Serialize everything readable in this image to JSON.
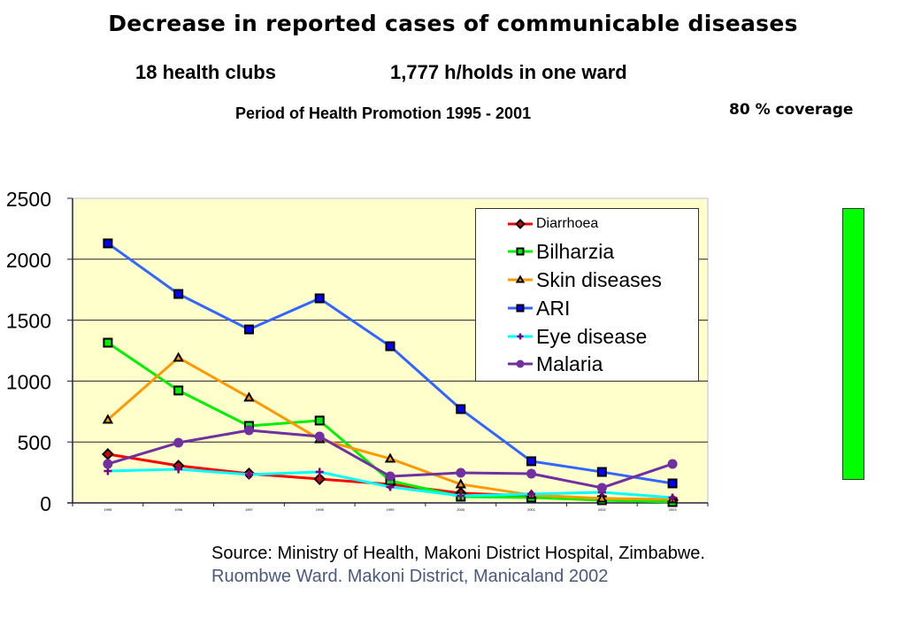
{
  "header": {
    "title": "Decrease in reported cases of communicable diseases",
    "clubs": "18 health clubs",
    "households": "1,777 h/holds in one ward",
    "period": "Period of Health Promotion 1995 - 2001",
    "coverage": "80 % coverage"
  },
  "coverage_bar": {
    "label": "80 % coverage",
    "color": "#00ff00"
  },
  "footer": {
    "source": "Source: Ministry of Health, Makoni District Hospital, Zimbabwe.",
    "location": "Ruombwe Ward. Makoni District, Manicaland 2002"
  },
  "chart_data": {
    "type": "line",
    "title": "Decrease in reported cases of communicable diseases",
    "xlabel": "",
    "ylabel": "",
    "x": [
      "1995",
      "1996",
      "1997",
      "1998",
      "1999",
      "2000",
      "2001",
      "2002",
      "2003"
    ],
    "ylim": [
      0,
      2500
    ],
    "yticks": [
      0,
      500,
      1000,
      1500,
      2000,
      2500
    ],
    "grid": true,
    "plot_background": "#ffffcc",
    "legend_position": "top-right",
    "series": [
      {
        "name": "Diarrhoea",
        "color": "#ff0000",
        "marker": "diamond",
        "marker_fill": "#cc0000",
        "values": [
          400,
          305,
          240,
          196,
          153,
          80,
          58,
          36,
          22
        ]
      },
      {
        "name": "Bilharzia",
        "color": "#00ee00",
        "marker": "square",
        "marker_fill": "#00ee00",
        "values": [
          1315,
          923,
          632,
          676,
          182,
          51,
          44,
          22,
          7
        ]
      },
      {
        "name": "Skin diseases",
        "color": "#ff9900",
        "marker": "triangle",
        "marker_fill": "#ff9900",
        "values": [
          683,
          1192,
          865,
          523,
          363,
          153,
          65,
          36,
          29
        ]
      },
      {
        "name": "ARI",
        "color": "#3366ff",
        "marker": "square",
        "marker_fill": "#0000ff",
        "values": [
          2130,
          1715,
          1424,
          1679,
          1286,
          770,
          342,
          254,
          160
        ]
      },
      {
        "name": "Eye disease",
        "color": "#00ffff",
        "marker": "plus",
        "marker_fill": "#800080",
        "values": [
          262,
          276,
          233,
          254,
          131,
          58,
          73,
          87,
          44
        ]
      },
      {
        "name": "Malaria",
        "color": "#7030a0",
        "marker": "circle",
        "marker_fill": "#7030a0",
        "values": [
          320,
          494,
          596,
          545,
          218,
          247,
          240,
          124,
          320
        ]
      }
    ]
  }
}
